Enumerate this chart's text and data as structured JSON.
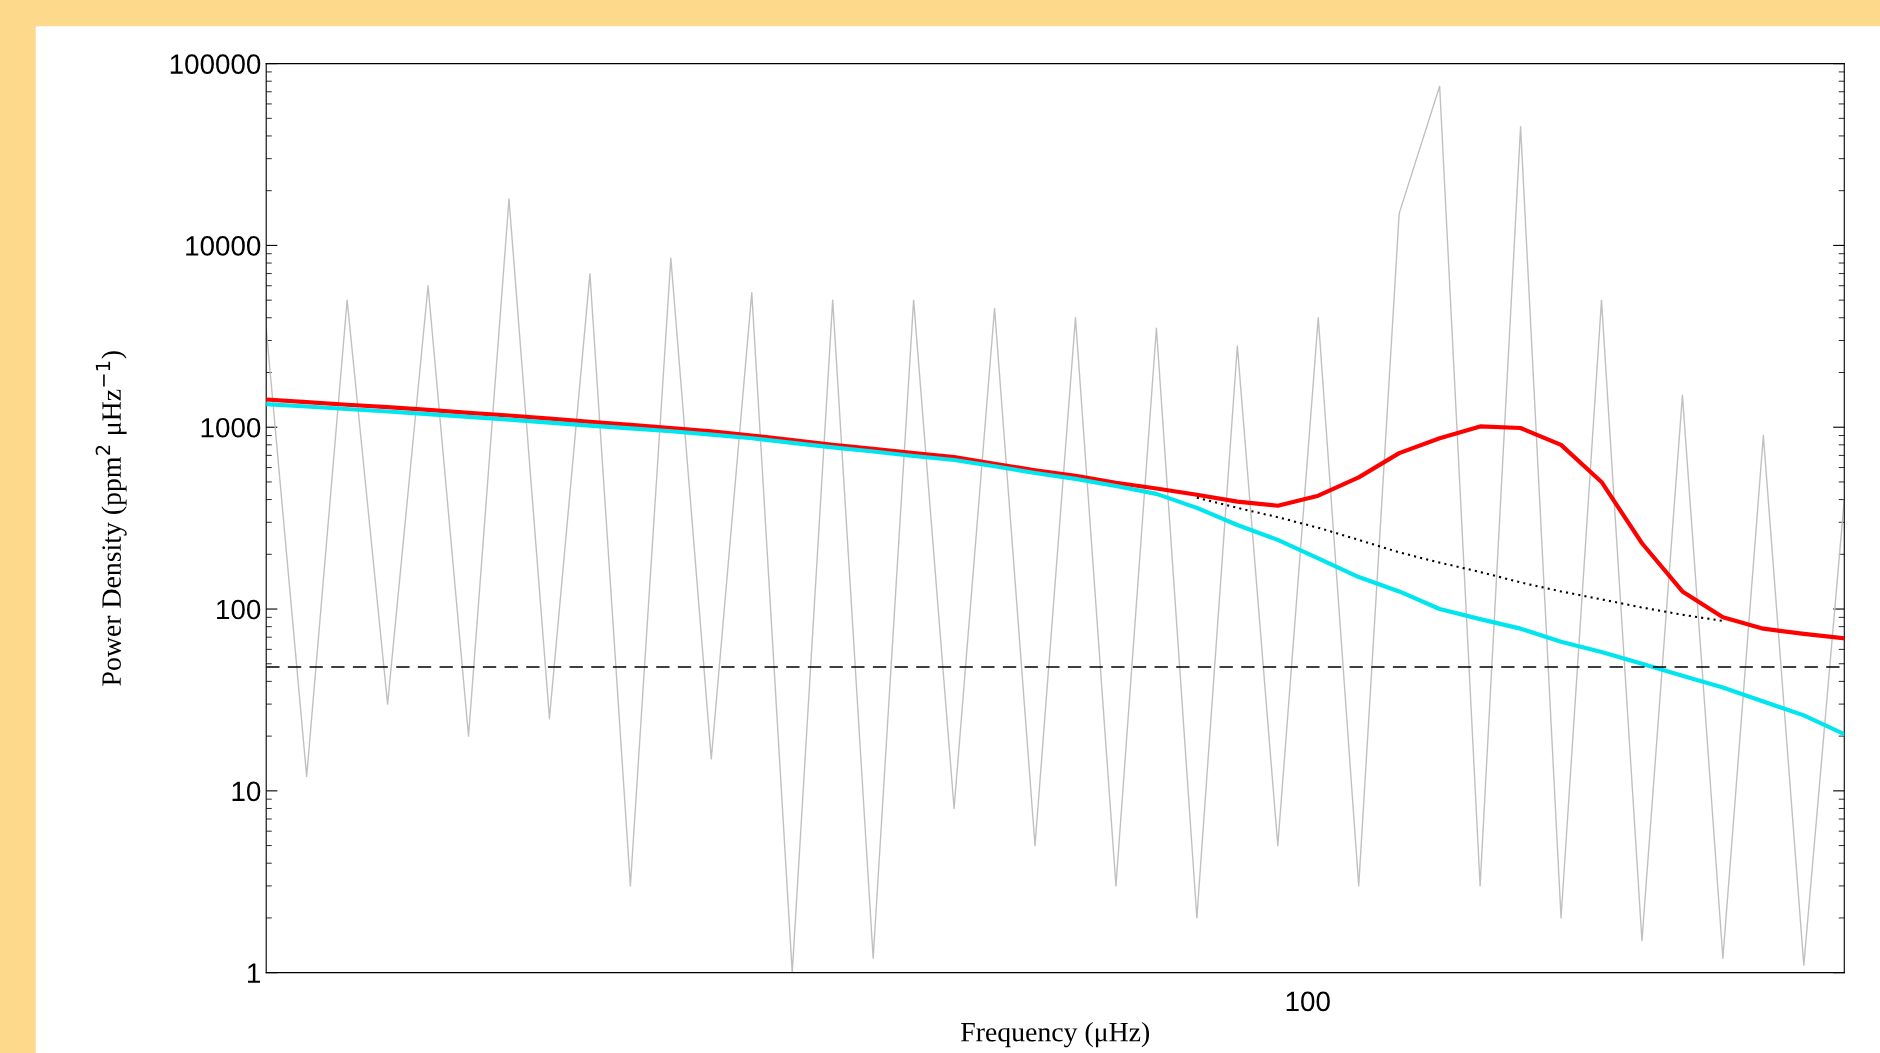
{
  "chart_data": {
    "type": "line",
    "xlabel": "Frequency (μHz)",
    "ylabel": "Power Density (ppm$^{2}$ μHz$^{−1}$)",
    "log": "y",
    "grid": false,
    "legend": false,
    "categories": [
      null,
      null,
      null,
      null,
      null,
      null,
      null,
      null,
      null,
      null,
      null,
      null,
      null,
      null,
      null,
      null,
      null,
      null,
      null,
      null,
      null,
      null,
      null,
      null,
      null,
      null,
      null,
      null,
      null,
      null,
      null,
      null,
      null,
      null,
      null,
      null,
      null,
      null,
      null,
      null
    ],
    "ylim": [
      1,
      100000
    ],
    "yticks": [
      1,
      10,
      100,
      1000,
      10000,
      100000
    ],
    "annotations": [
      "100"
    ],
    "series": [
      {
        "color": "#c0c0c0",
        "line_style": "solid",
        "values": [
          3500,
          12,
          5000,
          30,
          6000,
          20,
          18000,
          25,
          7000,
          3,
          8500,
          15,
          5500,
          1,
          5000,
          1.2,
          5000,
          8,
          4500,
          5,
          4000,
          3,
          3500,
          2,
          2800,
          5,
          4000,
          3,
          15000,
          75000,
          3,
          45000,
          2,
          5000,
          1.5,
          1500,
          1.2,
          900,
          1.1,
          400
        ]
      },
      {
        "color": "#ff0000",
        "line_style": "solid",
        "values": [
          1420,
          1375,
          1330,
          1290,
          1245,
          1200,
          1160,
          1115,
          1070,
          1030,
          990,
          950,
          900,
          850,
          800,
          760,
          720,
          685,
          630,
          580,
          540,
          495,
          460,
          425,
          390,
          370,
          420,
          530,
          720,
          870,
          1010,
          990,
          800,
          500,
          230,
          125,
          90,
          78,
          73,
          69
        ]
      },
      {
        "color": "#00e5ee",
        "line_style": "solid",
        "values": [
          1340,
          1300,
          1260,
          1220,
          1180,
          1140,
          1100,
          1060,
          1020,
          985,
          950,
          910,
          870,
          820,
          775,
          735,
          695,
          660,
          610,
          560,
          520,
          475,
          430,
          360,
          290,
          240,
          190,
          150,
          125,
          100,
          88,
          78,
          66,
          58,
          50,
          43,
          37,
          31,
          26,
          20.5
        ]
      },
      {
        "color": "#000000",
        "line_style": "dotted",
        "values": [
          null,
          null,
          null,
          null,
          null,
          null,
          null,
          null,
          null,
          null,
          null,
          null,
          null,
          null,
          null,
          null,
          null,
          null,
          null,
          null,
          null,
          null,
          null,
          410,
          360,
          320,
          280,
          240,
          205,
          180,
          160,
          140,
          125,
          113,
          102,
          93,
          86,
          null,
          null,
          null
        ]
      }
    ],
    "ref_lines": [
      {
        "axis": "y",
        "value": 48,
        "color": "#000000",
        "line_style": "dashed"
      }
    ]
  }
}
